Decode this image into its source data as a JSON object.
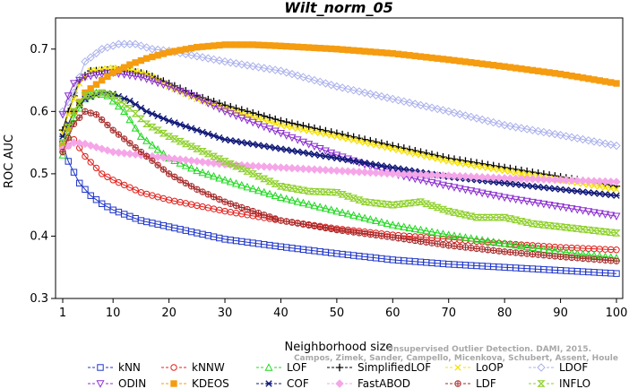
{
  "watermark": {
    "line1": "Unsupervised Outlier Detection. DAMI, 2015.",
    "line2": "Campos, Zimek, Sander, Campello, Micenkova, Schubert, Assent, Houle"
  },
  "chart_data": {
    "type": "line",
    "title": "Wilt_norm_05",
    "xlabel": "Neighborhood size",
    "ylabel": "ROC AUC",
    "xlim": [
      1,
      100
    ],
    "ylim": [
      0.3,
      0.75
    ],
    "xticks": [
      1,
      10,
      20,
      30,
      40,
      50,
      60,
      70,
      80,
      90,
      100
    ],
    "yticks": [
      0.3,
      0.4,
      0.5,
      0.6,
      0.7
    ],
    "ytick_labels": [
      "0.3",
      "0.4",
      "0.5",
      "0.6",
      "0.7"
    ],
    "grid": false,
    "legend_position": "bottom",
    "series": [
      {
        "name": "kNN",
        "color": "#1f35c8",
        "marker": "square",
        "points": [
          [
            1,
            0.548
          ],
          [
            2,
            0.52
          ],
          [
            4,
            0.485
          ],
          [
            6,
            0.465
          ],
          [
            8,
            0.452
          ],
          [
            10,
            0.442
          ],
          [
            15,
            0.425
          ],
          [
            20,
            0.415
          ],
          [
            30,
            0.395
          ],
          [
            40,
            0.383
          ],
          [
            50,
            0.372
          ],
          [
            60,
            0.362
          ],
          [
            70,
            0.355
          ],
          [
            80,
            0.35
          ],
          [
            90,
            0.345
          ],
          [
            100,
            0.34
          ]
        ]
      },
      {
        "name": "kNNW",
        "color": "#e0201c",
        "marker": "circle",
        "points": [
          [
            1,
            0.535
          ],
          [
            3,
            0.555
          ],
          [
            5,
            0.528
          ],
          [
            8,
            0.5
          ],
          [
            10,
            0.49
          ],
          [
            15,
            0.47
          ],
          [
            20,
            0.458
          ],
          [
            30,
            0.44
          ],
          [
            40,
            0.425
          ],
          [
            50,
            0.412
          ],
          [
            60,
            0.402
          ],
          [
            70,
            0.395
          ],
          [
            80,
            0.388
          ],
          [
            90,
            0.382
          ],
          [
            100,
            0.378
          ]
        ]
      },
      {
        "name": "LOF",
        "color": "#1fd81f",
        "marker": "triangle",
        "points": [
          [
            1,
            0.53
          ],
          [
            3,
            0.59
          ],
          [
            5,
            0.62
          ],
          [
            7,
            0.63
          ],
          [
            9,
            0.625
          ],
          [
            12,
            0.6
          ],
          [
            15,
            0.56
          ],
          [
            20,
            0.525
          ],
          [
            25,
            0.505
          ],
          [
            30,
            0.49
          ],
          [
            40,
            0.462
          ],
          [
            50,
            0.44
          ],
          [
            60,
            0.418
          ],
          [
            70,
            0.402
          ],
          [
            80,
            0.388
          ],
          [
            90,
            0.375
          ],
          [
            100,
            0.365
          ]
        ]
      },
      {
        "name": "SimplifiedLOF",
        "color": "#000000",
        "marker": "plus",
        "points": [
          [
            1,
            0.57
          ],
          [
            2,
            0.6
          ],
          [
            4,
            0.65
          ],
          [
            6,
            0.665
          ],
          [
            10,
            0.667
          ],
          [
            13,
            0.665
          ],
          [
            16,
            0.66
          ],
          [
            20,
            0.645
          ],
          [
            25,
            0.625
          ],
          [
            30,
            0.61
          ],
          [
            40,
            0.585
          ],
          [
            50,
            0.565
          ],
          [
            60,
            0.545
          ],
          [
            70,
            0.525
          ],
          [
            80,
            0.51
          ],
          [
            90,
            0.495
          ],
          [
            100,
            0.48
          ]
        ]
      },
      {
        "name": "LoOP",
        "color": "#f5e000",
        "marker": "x",
        "points": [
          [
            1,
            0.565
          ],
          [
            2,
            0.595
          ],
          [
            4,
            0.645
          ],
          [
            6,
            0.665
          ],
          [
            10,
            0.67
          ],
          [
            13,
            0.667
          ],
          [
            16,
            0.66
          ],
          [
            20,
            0.64
          ],
          [
            25,
            0.62
          ],
          [
            30,
            0.605
          ],
          [
            40,
            0.578
          ],
          [
            50,
            0.56
          ],
          [
            60,
            0.54
          ],
          [
            70,
            0.52
          ],
          [
            80,
            0.505
          ],
          [
            90,
            0.49
          ],
          [
            100,
            0.475
          ]
        ]
      },
      {
        "name": "LDOF",
        "color": "#aab0ec",
        "marker": "diamond",
        "points": [
          [
            1,
            0.6
          ],
          [
            3,
            0.63
          ],
          [
            5,
            0.68
          ],
          [
            8,
            0.7
          ],
          [
            11,
            0.708
          ],
          [
            14,
            0.708
          ],
          [
            17,
            0.7
          ],
          [
            20,
            0.697
          ],
          [
            30,
            0.68
          ],
          [
            40,
            0.665
          ],
          [
            50,
            0.64
          ],
          [
            60,
            0.62
          ],
          [
            70,
            0.6
          ],
          [
            80,
            0.578
          ],
          [
            90,
            0.562
          ],
          [
            100,
            0.545
          ]
        ]
      },
      {
        "name": "ODIN",
        "color": "#8b2fd0",
        "marker": "triangle-down",
        "points": [
          [
            1,
            0.595
          ],
          [
            2,
            0.625
          ],
          [
            3,
            0.645
          ],
          [
            5,
            0.655
          ],
          [
            8,
            0.66
          ],
          [
            10,
            0.662
          ],
          [
            15,
            0.655
          ],
          [
            20,
            0.64
          ],
          [
            25,
            0.622
          ],
          [
            30,
            0.6
          ],
          [
            40,
            0.565
          ],
          [
            50,
            0.53
          ],
          [
            60,
            0.5
          ],
          [
            70,
            0.48
          ],
          [
            80,
            0.462
          ],
          [
            90,
            0.447
          ],
          [
            100,
            0.432
          ]
        ]
      },
      {
        "name": "KDEOS",
        "color": "#f59c10",
        "marker": "square-filled",
        "points": [
          [
            1,
            0.545
          ],
          [
            3,
            0.6
          ],
          [
            5,
            0.63
          ],
          [
            8,
            0.65
          ],
          [
            10,
            0.662
          ],
          [
            13,
            0.675
          ],
          [
            16,
            0.685
          ],
          [
            20,
            0.695
          ],
          [
            25,
            0.703
          ],
          [
            30,
            0.707
          ],
          [
            35,
            0.707
          ],
          [
            40,
            0.705
          ],
          [
            50,
            0.7
          ],
          [
            60,
            0.693
          ],
          [
            70,
            0.683
          ],
          [
            80,
            0.672
          ],
          [
            90,
            0.66
          ],
          [
            100,
            0.645
          ]
        ]
      },
      {
        "name": "COF",
        "color": "#101878",
        "marker": "asterisk",
        "points": [
          [
            1,
            0.56
          ],
          [
            3,
            0.6
          ],
          [
            5,
            0.62
          ],
          [
            8,
            0.63
          ],
          [
            10,
            0.628
          ],
          [
            13,
            0.617
          ],
          [
            16,
            0.6
          ],
          [
            20,
            0.585
          ],
          [
            25,
            0.57
          ],
          [
            30,
            0.555
          ],
          [
            40,
            0.54
          ],
          [
            50,
            0.525
          ],
          [
            60,
            0.51
          ],
          [
            70,
            0.495
          ],
          [
            80,
            0.485
          ],
          [
            90,
            0.475
          ],
          [
            100,
            0.465
          ]
        ]
      },
      {
        "name": "FastABOD",
        "color": "#f5a6e8",
        "marker": "diamond-filled",
        "points": [
          [
            1,
            0.54
          ],
          [
            3,
            0.55
          ],
          [
            5,
            0.548
          ],
          [
            8,
            0.54
          ],
          [
            10,
            0.535
          ],
          [
            15,
            0.53
          ],
          [
            20,
            0.525
          ],
          [
            30,
            0.515
          ],
          [
            40,
            0.51
          ],
          [
            50,
            0.505
          ],
          [
            60,
            0.5
          ],
          [
            70,
            0.497
          ],
          [
            80,
            0.493
          ],
          [
            90,
            0.49
          ],
          [
            100,
            0.487
          ]
        ]
      },
      {
        "name": "LDF",
        "color": "#a82a2a",
        "marker": "circle-plus",
        "points": [
          [
            1,
            0.535
          ],
          [
            3,
            0.58
          ],
          [
            5,
            0.6
          ],
          [
            7,
            0.595
          ],
          [
            10,
            0.57
          ],
          [
            15,
            0.535
          ],
          [
            20,
            0.5
          ],
          [
            25,
            0.475
          ],
          [
            30,
            0.455
          ],
          [
            40,
            0.425
          ],
          [
            50,
            0.41
          ],
          [
            60,
            0.398
          ],
          [
            70,
            0.385
          ],
          [
            80,
            0.375
          ],
          [
            90,
            0.367
          ],
          [
            100,
            0.36
          ]
        ]
      },
      {
        "name": "INFLO",
        "color": "#8ed02a",
        "marker": "hourglass",
        "points": [
          [
            1,
            0.55
          ],
          [
            3,
            0.6
          ],
          [
            5,
            0.625
          ],
          [
            8,
            0.63
          ],
          [
            10,
            0.625
          ],
          [
            13,
            0.605
          ],
          [
            16,
            0.58
          ],
          [
            20,
            0.56
          ],
          [
            25,
            0.54
          ],
          [
            30,
            0.52
          ],
          [
            35,
            0.5
          ],
          [
            40,
            0.48
          ],
          [
            45,
            0.472
          ],
          [
            50,
            0.47
          ],
          [
            55,
            0.455
          ],
          [
            60,
            0.45
          ],
          [
            65,
            0.455
          ],
          [
            70,
            0.44
          ],
          [
            75,
            0.43
          ],
          [
            80,
            0.43
          ],
          [
            85,
            0.42
          ],
          [
            90,
            0.415
          ],
          [
            95,
            0.41
          ],
          [
            100,
            0.405
          ]
        ]
      }
    ]
  }
}
